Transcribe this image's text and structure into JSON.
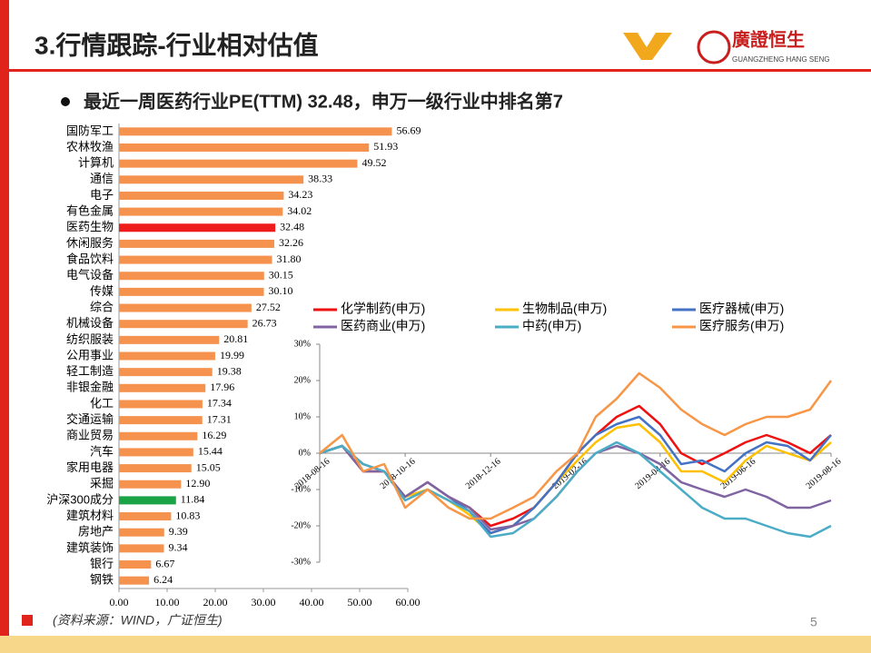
{
  "header": {
    "title": "3.行情跟踪-行业相对估值",
    "logo_name": "廣證恒生",
    "logo_sub": "GUANGZHENG HANG SENG"
  },
  "heading": "最近一周医药行业PE(TTM) 32.48，申万一级行业中排名第7",
  "source": "(资料来源：WIND，广证恒生)",
  "page": "5",
  "chart_data": [
    {
      "type": "hbar",
      "categories": [
        "国防军工",
        "农林牧渔",
        "计算机",
        "通信",
        "电子",
        "有色金属",
        "医药生物",
        "休闲服务",
        "食品饮料",
        "电气设备",
        "传媒",
        "综合",
        "机械设备",
        "纺织服装",
        "公用事业",
        "轻工制造",
        "非银金融",
        "化工",
        "交通运输",
        "商业贸易",
        "汽车",
        "家用电器",
        "采掘",
        "沪深300成分",
        "建筑材料",
        "房地产",
        "建筑装饰",
        "银行",
        "钢铁"
      ],
      "values": [
        56.69,
        51.93,
        49.52,
        38.33,
        34.23,
        34.02,
        32.48,
        32.26,
        31.8,
        30.15,
        30.1,
        27.52,
        26.73,
        20.81,
        19.99,
        19.38,
        17.96,
        17.34,
        17.31,
        16.29,
        15.44,
        15.05,
        12.9,
        11.84,
        10.83,
        9.39,
        9.34,
        6.67,
        6.24
      ],
      "value_labels": [
        "56.69",
        "51.93",
        "49.52",
        "38.33",
        "34.23",
        "34.02",
        "32.48",
        "32.26",
        "31.80",
        "30.15",
        "30.10",
        "27.52",
        "26.73",
        "20.81",
        "19.99",
        "19.38",
        "17.96",
        "17.34",
        "17.31",
        "16.29",
        "15.44",
        "15.05",
        "12.90",
        "11.84",
        "10.83",
        "9.39",
        "9.34",
        "6.67",
        "6.24"
      ],
      "colors": [
        "#f4924e",
        "#f4924e",
        "#f4924e",
        "#f4924e",
        "#f4924e",
        "#f4924e",
        "#ee1c1c",
        "#f4924e",
        "#f4924e",
        "#f4924e",
        "#f4924e",
        "#f4924e",
        "#f4924e",
        "#f4924e",
        "#f4924e",
        "#f4924e",
        "#f4924e",
        "#f4924e",
        "#f4924e",
        "#f4924e",
        "#f4924e",
        "#f4924e",
        "#f4924e",
        "#1aa446",
        "#f4924e",
        "#f4924e",
        "#f4924e",
        "#f4924e",
        "#f4924e"
      ],
      "xlim": [
        0,
        60
      ],
      "xticks": [
        {
          "value": 0,
          "label": "0.00"
        },
        {
          "value": 10,
          "label": "10.00"
        },
        {
          "value": 20,
          "label": "20.00"
        },
        {
          "value": 30,
          "label": "30.00"
        },
        {
          "value": 40,
          "label": "40.00"
        },
        {
          "value": 50,
          "label": "50.00"
        },
        {
          "value": 60,
          "label": "60.00"
        }
      ]
    },
    {
      "type": "line",
      "x": [
        "2018-08-16",
        "2018-09-01",
        "2018-09-16",
        "2018-10-01",
        "2018-10-16",
        "2018-11-01",
        "2018-11-16",
        "2018-12-01",
        "2018-12-16",
        "2019-01-01",
        "2019-01-16",
        "2019-02-01",
        "2019-02-16",
        "2019-03-01",
        "2019-03-16",
        "2019-04-01",
        "2019-04-16",
        "2019-05-01",
        "2019-05-16",
        "2019-06-01",
        "2019-06-16",
        "2019-07-01",
        "2019-07-16",
        "2019-08-01",
        "2019-08-16"
      ],
      "series": [
        {
          "name": "化学制药(申万)",
          "color": "#ee1111",
          "values": [
            0,
            2,
            -5,
            -5,
            -12,
            -8,
            -12,
            -15,
            -20,
            -18,
            -15,
            -8,
            0,
            5,
            10,
            13,
            8,
            0,
            -3,
            0,
            3,
            5,
            3,
            0,
            5
          ]
        },
        {
          "name": "生物制品(申万)",
          "color": "#ffc000",
          "values": [
            0,
            2,
            -3,
            -5,
            -12,
            -10,
            -13,
            -17,
            -22,
            -20,
            -15,
            -8,
            -2,
            3,
            7,
            8,
            3,
            -5,
            -5,
            -8,
            -2,
            2,
            0,
            -2,
            3
          ]
        },
        {
          "name": "医疗器械(申万)",
          "color": "#4472c4",
          "values": [
            0,
            2,
            -3,
            -5,
            -12,
            -8,
            -12,
            -16,
            -22,
            -20,
            -15,
            -8,
            0,
            5,
            8,
            10,
            5,
            -3,
            -2,
            -5,
            0,
            3,
            2,
            -2,
            5
          ]
        },
        {
          "name": "医药商业(申万)",
          "color": "#8064a2",
          "values": [
            0,
            2,
            -5,
            -5,
            -12,
            -8,
            -12,
            -15,
            -21,
            -20,
            -18,
            -12,
            -5,
            0,
            2,
            0,
            -3,
            -8,
            -10,
            -12,
            -10,
            -12,
            -15,
            -15,
            -13
          ]
        },
        {
          "name": "中药(申万)",
          "color": "#4bacc6",
          "values": [
            0,
            2,
            -3,
            -5,
            -13,
            -10,
            -13,
            -16,
            -23,
            -22,
            -18,
            -12,
            -5,
            0,
            3,
            0,
            -5,
            -10,
            -15,
            -18,
            -18,
            -20,
            -22,
            -23,
            -20
          ]
        },
        {
          "name": "医疗服务(申万)",
          "color": "#f79646",
          "values": [
            0,
            5,
            -5,
            -3,
            -15,
            -10,
            -15,
            -18,
            -18,
            -15,
            -12,
            -5,
            0,
            10,
            15,
            22,
            18,
            12,
            8,
            5,
            8,
            10,
            10,
            12,
            20
          ]
        }
      ],
      "ylim": [
        -30,
        30
      ],
      "yticks": [
        {
          "value": 30,
          "label": "30%"
        },
        {
          "value": 20,
          "label": "20%"
        },
        {
          "value": 10,
          "label": "10%"
        },
        {
          "value": 0,
          "label": "0%"
        },
        {
          "value": -10,
          "label": "-10%"
        },
        {
          "value": -20,
          "label": "-20%"
        },
        {
          "value": -30,
          "label": "-30%"
        }
      ],
      "xticks": [
        "2018-08-16",
        "2018-10-16",
        "2018-12-16",
        "2019-02-16",
        "2019-04-16",
        "2019-06-16",
        "2019-08-16"
      ]
    }
  ]
}
